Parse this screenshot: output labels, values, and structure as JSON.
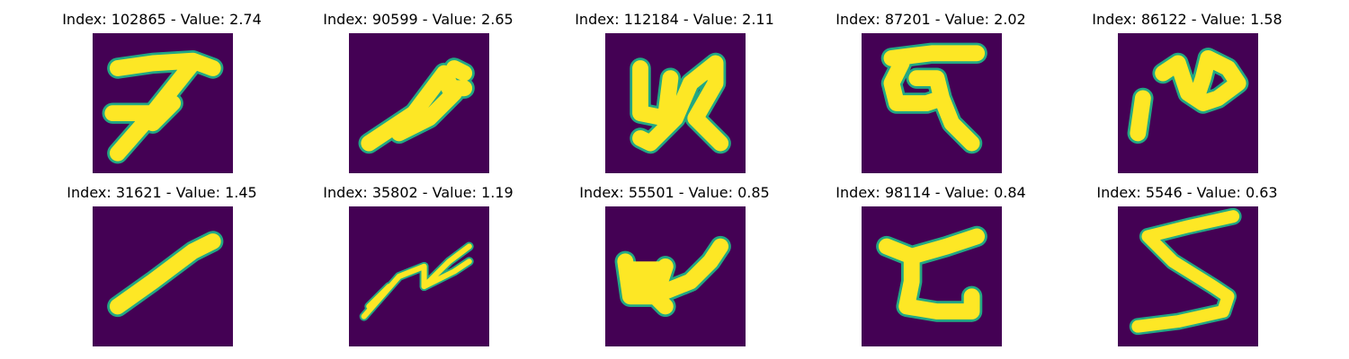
{
  "colors": {
    "background": "#440154",
    "stroke": "#fde725",
    "edge": "#22a884"
  },
  "panels": [
    {
      "title": "Index: 102865 - Value: 2.74"
    },
    {
      "title": "Index: 90599 - Value: 2.65"
    },
    {
      "title": "Index: 112184 - Value: 2.11"
    },
    {
      "title": "Index: 87201 - Value: 2.02"
    },
    {
      "title": "Index: 86122 - Value: 1.58"
    },
    {
      "title": "Index: 31621 - Value: 1.45"
    },
    {
      "title": "Index: 35802 - Value: 1.19"
    },
    {
      "title": "Index: 55501 - Value: 0.85"
    },
    {
      "title": "Index: 98114 - Value: 0.84"
    },
    {
      "title": "Index: 5546 - Value: 0.63"
    }
  ]
}
